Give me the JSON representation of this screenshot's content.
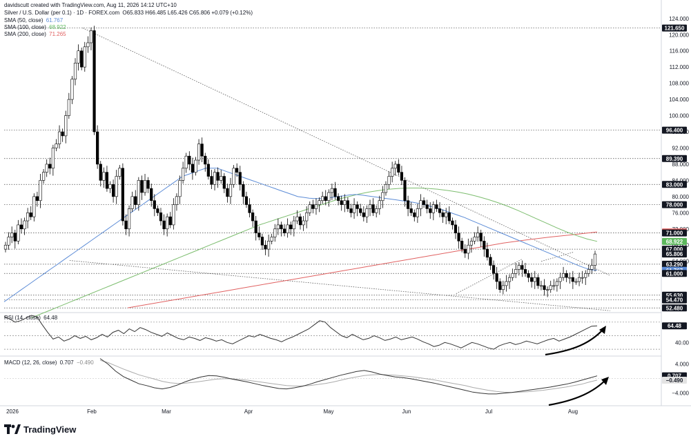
{
  "header": {
    "creator": "davidscutt created with TradingView.com, Aug 11, 2026 14:12 UTC+10",
    "symbol_line": "Silver / U.S. Dollar (per 0.1) · 1D · FOREX.com",
    "ohlc": "O65.833 H66.485 L65.426 C65.806 +0.079 (+0.12%)",
    "sma50_label": "SMA (50, close)",
    "sma50_value": "61.767",
    "sma100_label": "SMA (100, close)",
    "sma100_value": "68.922",
    "sma200_label": "SMA (200, close)",
    "sma200_value": "71.265"
  },
  "rsi_header": {
    "label": "RSI (14, close)",
    "value": "64.48"
  },
  "macd_header": {
    "label": "MACD (12, 26, close)",
    "value": "0.707",
    "signal": "−0.490"
  },
  "brand": {
    "name": "TradingView"
  },
  "colors": {
    "candle_up": "#ffffff",
    "candle_down": "#000000",
    "candle_outline": "#000000",
    "sma50": "#5b8bd6",
    "sma100": "#7cbd6e",
    "sma200": "#e06060",
    "label_dark": "#131722",
    "label_blue": "#5b8bd6",
    "label_green": "#5cb85c",
    "label_red": "#e06060"
  },
  "chart_data": [
    {
      "type": "candlestick",
      "title": "Silver / U.S. Dollar (per 0.1) · 1D · FOREX.com",
      "x_axis": [
        "2026",
        "Feb",
        "Mar",
        "Apr",
        "May",
        "Jun",
        "Jul",
        "Aug"
      ],
      "y_ticks": [
        "124.000",
        "120.000",
        "116.000",
        "112.000",
        "108.000",
        "104.000",
        "100.000",
        "96.000",
        "92.000",
        "88.000",
        "84.000",
        "80.000",
        "76.000",
        "72.000",
        "68.000",
        "64.000"
      ],
      "ylim": [
        51.5,
        125.5
      ],
      "price_labels": [
        {
          "text": "121.650",
          "value": 121.65,
          "style": "dark"
        },
        {
          "text": "96.400",
          "value": 96.4,
          "style": "dark"
        },
        {
          "text": "89.390",
          "value": 89.39,
          "style": "dark"
        },
        {
          "text": "83.000",
          "value": 83.0,
          "style": "dark"
        },
        {
          "text": "78.000",
          "value": 78.0,
          "style": "dark"
        },
        {
          "text": "71.265",
          "value": 71.265,
          "style": "red"
        },
        {
          "text": "71.000",
          "value": 71.0,
          "style": "dark"
        },
        {
          "text": "68.922",
          "value": 68.922,
          "style": "green"
        },
        {
          "text": "67.000",
          "value": 67.0,
          "style": "dark"
        },
        {
          "text": "65.806",
          "value": 65.806,
          "style": "dark"
        },
        {
          "text": "63.290",
          "value": 63.29,
          "style": "dark"
        },
        {
          "text": "61.767",
          "value": 61.767,
          "style": "blue"
        },
        {
          "text": "61.000",
          "value": 61.0,
          "style": "dark"
        },
        {
          "text": "55.630",
          "value": 55.63,
          "style": "dark"
        },
        {
          "text": "54.470",
          "value": 54.47,
          "style": "dark"
        },
        {
          "text": "52.480",
          "value": 52.48,
          "style": "dark"
        }
      ],
      "horizontal_levels": [
        121.65,
        96.4,
        89.39,
        83.0,
        78.0,
        71.0,
        67.0,
        63.29,
        61.0,
        55.63,
        54.47,
        52.48
      ],
      "close": [
        68,
        70,
        71,
        69,
        73,
        72,
        74,
        76,
        75,
        80,
        79,
        84,
        86,
        88,
        87,
        92,
        93,
        96,
        95,
        100,
        104,
        109,
        113,
        116,
        112,
        117,
        118,
        121,
        96,
        88,
        84,
        86,
        82,
        83,
        80,
        85,
        87,
        74,
        72,
        77,
        80,
        78,
        84,
        81,
        84,
        82,
        79,
        77,
        76,
        74,
        72,
        75,
        73,
        78,
        80,
        84,
        87,
        90,
        88,
        86,
        89,
        93,
        90,
        88,
        85,
        83,
        86,
        84,
        85,
        82,
        80,
        83,
        87,
        86,
        83,
        80,
        78,
        76,
        74,
        71,
        70,
        68,
        67,
        69,
        70,
        72,
        73,
        72,
        71,
        73,
        72,
        74,
        75,
        73,
        74,
        76,
        78,
        77,
        78,
        79,
        80,
        79,
        81,
        82,
        80,
        79,
        78,
        79,
        77,
        76,
        78,
        77,
        76,
        75,
        77,
        78,
        76,
        77,
        79,
        81,
        83,
        85,
        87,
        88,
        86,
        84,
        79,
        77,
        76,
        75,
        77,
        79,
        78,
        77,
        76,
        78,
        77,
        76,
        75,
        76,
        74,
        73,
        71,
        69,
        67,
        66,
        68,
        69,
        70,
        71,
        69,
        67,
        65,
        63,
        61,
        59,
        57,
        58,
        59,
        60,
        61,
        62,
        63,
        62,
        61,
        60,
        59,
        60,
        58,
        58,
        57,
        57,
        58,
        58,
        59,
        60,
        61,
        60,
        60,
        59,
        59,
        60,
        60,
        61,
        62,
        63,
        65.806
      ],
      "sma50": [
        54,
        55,
        56,
        57,
        58,
        59,
        60,
        61,
        62,
        63,
        64,
        65,
        66,
        67,
        68,
        69,
        70,
        71,
        72,
        73,
        74,
        75,
        76,
        77,
        78,
        79,
        80,
        81,
        82,
        83,
        84,
        85,
        85.5,
        86,
        86.5,
        87,
        87,
        87,
        86.5,
        86,
        85.5,
        85,
        84.5,
        84,
        83.5,
        83,
        82.5,
        82,
        81.5,
        81,
        80.5,
        80,
        79.8,
        79.6,
        79.5,
        79.5,
        79.6,
        79.8,
        80,
        80.2,
        80.4,
        80.5,
        80.4,
        80.2,
        80,
        79.8,
        79.6,
        79.4,
        79.2,
        79,
        78.8,
        78.6,
        78.3,
        78,
        77.6,
        77.2,
        76.8,
        76.3,
        75.8,
        75.3,
        74.8,
        74.2,
        73.6,
        73,
        72.4,
        71.8,
        71.2,
        70.6,
        70,
        69.4,
        68.8,
        68.2,
        67.6,
        67,
        66.4,
        65.8,
        65.2,
        64.6,
        64,
        63.4,
        62.8,
        62.3,
        61.9,
        61.767
      ],
      "sma100": [
        50,
        51,
        52,
        53,
        54,
        55,
        56,
        57,
        58,
        59,
        60,
        61,
        62,
        63,
        64,
        65,
        66,
        67,
        68,
        69,
        70,
        71,
        72,
        73,
        73.8,
        74.6,
        75.4,
        76.2,
        77,
        77.8,
        78.6,
        79.4,
        80,
        80.6,
        81.1,
        81.5,
        81.8,
        82,
        82.1,
        82.1,
        82,
        81.8,
        81.5,
        81.1,
        80.6,
        80,
        79.3,
        78.5,
        77.6,
        76.6,
        75.5,
        74.4,
        73.3,
        72.2,
        71.2,
        70.3,
        69.5,
        68.922
      ],
      "sma200": [
        52.5,
        53.5,
        54.5,
        55.5,
        56.5,
        57.5,
        58.5,
        59.5,
        60.5,
        61.5,
        62.5,
        63.5,
        64.5,
        65.5,
        66.5,
        67.5,
        68.5,
        69.3,
        70,
        70.6,
        71.265
      ],
      "trendlines": [
        {
          "from": [
            0.12,
            121.65
          ],
          "to": [
            0.925,
            60.5
          ]
        },
        {
          "from": [
            0.1,
            64.2
          ],
          "to": [
            0.925,
            51.8
          ]
        },
        {
          "from": [
            0.69,
            56.0
          ],
          "to": [
            0.79,
            64.5
          ]
        },
        {
          "from": [
            0.82,
            64.0
          ],
          "to": [
            0.87,
            66.3
          ]
        }
      ]
    },
    {
      "type": "line",
      "title": "RSI (14, close)",
      "y_ticks": [
        "64.48",
        "40.00"
      ],
      "ylim": [
        22,
        82
      ],
      "levels": [
        70,
        50,
        30
      ],
      "values": [
        78,
        75,
        70,
        72,
        76,
        80,
        78,
        66,
        55,
        45,
        48,
        42,
        45,
        50,
        46,
        49,
        44,
        47,
        52,
        48,
        55,
        58,
        53,
        60,
        56,
        62,
        59,
        55,
        52,
        49,
        54,
        50,
        46,
        44,
        48,
        46,
        43,
        47,
        45,
        42,
        44,
        40,
        38,
        42,
        46,
        50,
        48,
        52,
        49,
        46,
        44,
        41,
        45,
        48,
        52,
        56,
        60,
        66,
        72,
        70,
        62,
        56,
        50,
        47,
        52,
        48,
        44,
        46,
        50,
        47,
        43,
        45,
        48,
        44,
        46,
        48,
        45,
        41,
        38,
        34,
        36,
        40,
        38,
        35,
        32,
        36,
        40,
        38,
        35,
        32,
        30,
        35,
        38,
        40,
        37,
        39,
        42,
        40,
        38,
        41,
        44,
        46,
        42,
        45,
        48,
        52,
        56,
        60,
        64,
        64.48
      ],
      "label_value": "64.48"
    },
    {
      "type": "line",
      "title": "MACD (12, 26, close)",
      "y_ticks": [
        "4.000",
        "0.707",
        "−0.490",
        "−4.000"
      ],
      "ylim": [
        -7,
        6
      ],
      "series": [
        {
          "name": "MACD",
          "values": [
            5.5,
            4.0,
            2.0,
            0.5,
            -0.5,
            -1.5,
            -2.0,
            -2.6,
            -2.9,
            -2.5,
            -1.8,
            -0.9,
            -0.2,
            0.4,
            0.8,
            0.7,
            0.3,
            -0.2,
            -0.6,
            -1.0,
            -1.5,
            -2.0,
            -2.4,
            -2.8,
            -2.9,
            -2.6,
            -2.2,
            -1.6,
            -0.9,
            -0.3,
            0.3,
            0.9,
            1.4,
            1.9,
            2.2,
            1.8,
            1.2,
            0.8,
            0.4,
            0.2,
            -0.1,
            -0.5,
            -0.9,
            -1.3,
            -1.8,
            -2.3,
            -2.8,
            -3.3,
            -3.8,
            -4.1,
            -4.3,
            -4.3,
            -4.1,
            -3.9,
            -3.6,
            -3.3,
            -3.0,
            -2.7,
            -2.4,
            -2.0,
            -1.6,
            -1.1,
            -0.5,
            0.1,
            0.707
          ]
        },
        {
          "name": "Signal",
          "values": [
            5.0,
            4.4,
            3.5,
            2.6,
            1.8,
            1.0,
            0.4,
            -0.2,
            -0.8,
            -1.2,
            -1.4,
            -1.3,
            -1.1,
            -0.8,
            -0.5,
            -0.2,
            -0.1,
            -0.1,
            -0.3,
            -0.5,
            -0.8,
            -1.1,
            -1.4,
            -1.7,
            -2.0,
            -2.1,
            -2.1,
            -2.0,
            -1.7,
            -1.4,
            -1.0,
            -0.5,
            0.0,
            0.4,
            0.8,
            1.0,
            1.1,
            1.0,
            0.9,
            0.7,
            0.5,
            0.2,
            -0.1,
            -0.4,
            -0.8,
            -1.2,
            -1.6,
            -2.0,
            -2.5,
            -2.9,
            -3.3,
            -3.6,
            -3.8,
            -3.9,
            -3.8,
            -3.7,
            -3.5,
            -3.3,
            -3.0,
            -2.7,
            -2.4,
            -2.0,
            -1.6,
            -1.0,
            -0.49
          ]
        }
      ],
      "label_values": [
        "0.707",
        "−0.490"
      ]
    }
  ]
}
